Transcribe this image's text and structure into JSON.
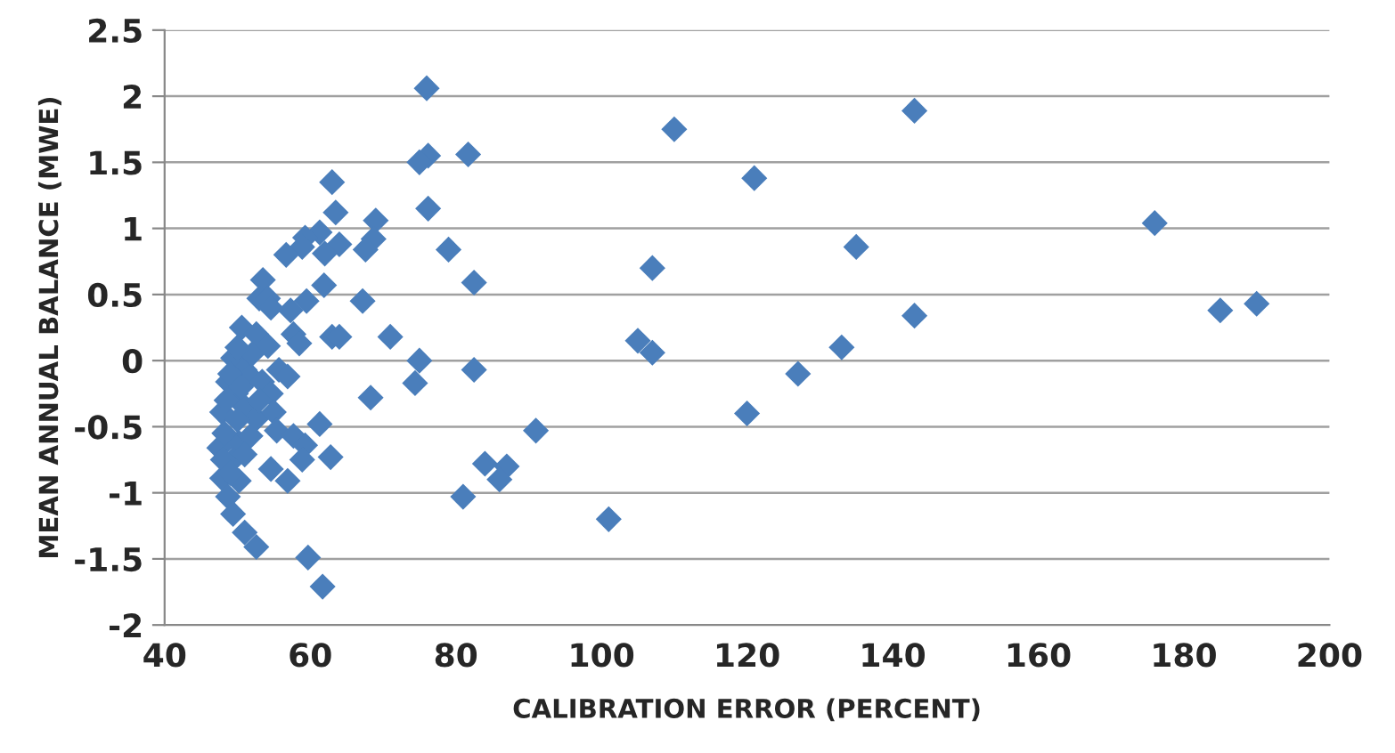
{
  "chart_data": {
    "type": "scatter",
    "xlabel": "CALIBRATION ERROR (PERCENT)",
    "ylabel": "MEAN ANNUAL BALANCE (MWE)",
    "xlim": [
      40,
      200
    ],
    "xticks": [
      40,
      60,
      80,
      100,
      120,
      140,
      160,
      180,
      200
    ],
    "ylim": [
      -2,
      2.5
    ],
    "yticks": [
      -2,
      -1.5,
      -1,
      -0.5,
      0,
      0.5,
      1,
      1.5,
      2,
      2.5
    ],
    "grid": "y",
    "marker": "diamond",
    "series": [
      {
        "color": "#4a7ebb",
        "x": [
          110,
          121,
          143,
          135,
          176,
          185,
          190,
          143,
          133,
          127,
          120,
          105,
          107,
          107,
          101,
          91,
          87,
          86,
          84,
          81,
          82.5,
          82.5,
          81.7,
          79,
          76.2,
          76.2,
          75,
          75,
          74.4,
          71,
          68.3,
          69,
          68.7,
          67.6,
          67.2,
          63,
          63.5,
          64,
          62,
          61.3,
          59.3,
          58.9,
          56.7,
          61.9,
          63,
          61.3,
          62.8,
          59.7,
          61.7,
          53.5,
          53,
          54.2,
          54.6,
          59.5,
          57.3,
          50.6,
          52.6,
          54.2,
          57.7,
          58.5,
          64,
          49.4,
          51,
          48.7,
          49.8,
          51.8,
          53.4,
          55.7,
          56.9,
          54.6,
          47.9,
          51,
          52.6,
          55,
          50.2,
          51.8,
          47.5,
          49.4,
          51,
          55.4,
          57.7,
          59.3,
          58.9,
          54.6,
          56.9,
          47.9,
          50.2,
          48.7,
          49.4,
          51,
          52.6,
          48.5,
          49,
          48,
          48.2,
          50,
          50.5,
          52,
          53,
          49,
          50,
          76
        ],
        "values": [
          1.75,
          1.38,
          1.89,
          0.86,
          1.04,
          0.38,
          0.43,
          0.34,
          0.1,
          -0.1,
          -0.4,
          0.15,
          0.06,
          0.7,
          -1.2,
          -0.53,
          -0.8,
          -0.9,
          -0.78,
          -1.03,
          -0.07,
          0.59,
          1.56,
          0.84,
          1.15,
          1.55,
          1.5,
          0,
          -0.17,
          0.18,
          -0.28,
          1.06,
          0.92,
          0.84,
          0.45,
          1.35,
          1.12,
          0.88,
          0.81,
          0.97,
          0.93,
          0.86,
          0.8,
          0.57,
          0.18,
          -0.48,
          -0.73,
          -1.49,
          -1.71,
          0.61,
          0.47,
          0.47,
          0.4,
          0.45,
          0.38,
          0.25,
          0.2,
          0.11,
          0.2,
          0.13,
          0.18,
          0.02,
          -0.07,
          -0.16,
          -0.25,
          -0.12,
          -0.16,
          -0.07,
          -0.12,
          -0.25,
          -0.39,
          -0.35,
          -0.44,
          -0.39,
          -0.62,
          -0.57,
          -0.66,
          -0.75,
          -0.71,
          -0.53,
          -0.57,
          -0.64,
          -0.75,
          -0.82,
          -0.91,
          -0.89,
          -0.91,
          -1.03,
          -1.16,
          -1.3,
          -1.41,
          -0.3,
          -0.1,
          -0.75,
          -0.55,
          -0.45,
          -0.2,
          0.05,
          -0.3,
          -0.85,
          0.1,
          2.06
        ]
      }
    ]
  }
}
